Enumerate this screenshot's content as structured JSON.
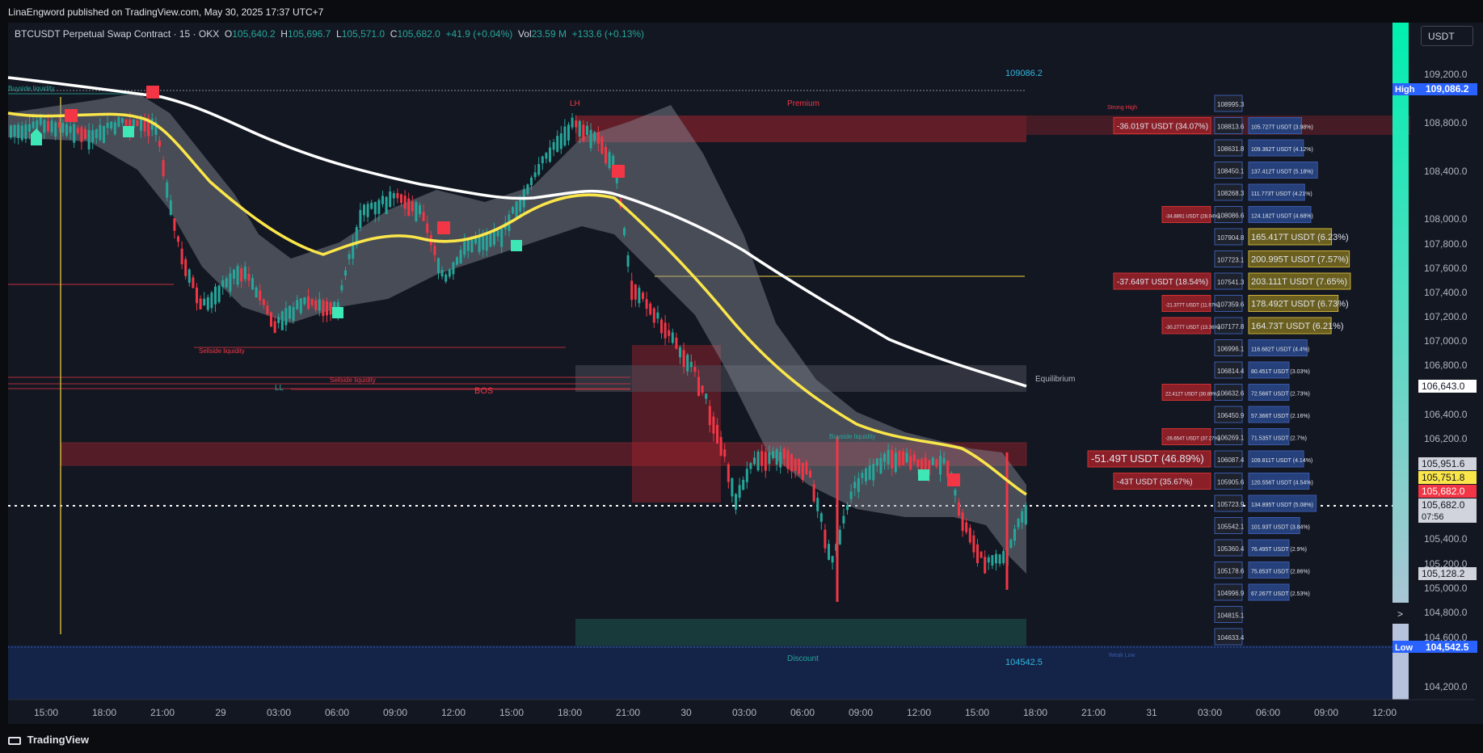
{
  "header": {
    "published": "LinaEngword published on TradingView.com, May 30, 2025 17:37 UTC+7"
  },
  "symbol": {
    "title": "BTCUSDT Perpetual Swap Contract · 15 · OKX",
    "o_label": "O",
    "o": "105,640.2",
    "h_label": "H",
    "h": "105,696.7",
    "l_label": "L",
    "l": "105,571.0",
    "c_label": "C",
    "c": "105,682.0",
    "change": "+41.9 (+0.04%)",
    "vol_label": "Vol",
    "vol": "23.59 M",
    "vol_change": "+133.6 (+0.13%)"
  },
  "currency_button": "USDT",
  "price_axis": {
    "ticks": [
      "109,200.0",
      "108,800.0",
      "108,400.0",
      "108,000.0",
      "107,800.0",
      "107,600.0",
      "107,400.0",
      "107,200.0",
      "107,000.0",
      "106,800.0",
      "106,400.0",
      "106,200.0",
      "105,400.0",
      "105,200.0",
      "105,000.0",
      "104,800.0",
      "104,600.0",
      "104,200.0"
    ],
    "high_label": "High",
    "high_value": "109,086.2",
    "low_label": "Low",
    "low_value": "104,542.5",
    "equilibrium_value": "106,643.0",
    "p1": "105,951.6",
    "p2": "105,751.8",
    "p3": "105,682.0",
    "current": "105,682.0",
    "countdown": "07:56",
    "p4": "105,128.2",
    "more": ">"
  },
  "time_axis": [
    "15:00",
    "18:00",
    "21:00",
    "29",
    "03:00",
    "06:00",
    "09:00",
    "12:00",
    "15:00",
    "18:00",
    "21:00",
    "30",
    "03:00",
    "06:00",
    "09:00",
    "12:00",
    "15:00",
    "18:00",
    "21:00",
    "31",
    "03:00",
    "06:00",
    "09:00",
    "12:00"
  ],
  "annotations": {
    "high_value": "109086.2",
    "low_value": "104542.5",
    "premium": "Premium",
    "discount": "Discount",
    "equilibrium": "Equilibrium",
    "strong_high": "Strong High",
    "weak_low": "Weak Low",
    "lh": "LH",
    "ll": "LL",
    "bos": "BOS",
    "buyside_1": "Buyside liquidity",
    "buyside_2": "Buyside liquidity",
    "sellside_1": "Sellside liquidity",
    "sellside_2": "Sellside liquidity"
  },
  "volume_profile": {
    "rows": [
      {
        "price": "108995.3",
        "left": "",
        "right": ""
      },
      {
        "price": "108813.6",
        "left": "-36.019T USDT (34.07%)",
        "right": "105.727T USDT (3.98%)"
      },
      {
        "price": "108631.8",
        "left": "",
        "right": "109.362T USDT (4.12%)"
      },
      {
        "price": "108450.1",
        "left": "",
        "right": "137.412T USDT (5.18%)"
      },
      {
        "price": "108268.3",
        "left": "",
        "right": "111.773T USDT (4.21%)"
      },
      {
        "price": "108086.6",
        "left": "-34.8891 USDT (28.04%)",
        "right": "124.182T USDT (4.68%)"
      },
      {
        "price": "107904.8",
        "left": "",
        "right": "165.417T USDT (6.23%)"
      },
      {
        "price": "107723.1",
        "left": "",
        "right": "200.995T USDT (7.57%)"
      },
      {
        "price": "107541.3",
        "left": "-37.649T USDT (18.54%)",
        "right": "203.111T USDT (7.65%)"
      },
      {
        "price": "107359.6",
        "left": "-21.377T USDT (11.97%)",
        "right": "178.492T USDT (6.73%)"
      },
      {
        "price": "107177.8",
        "left": "-30.277T USDT (13.36%)",
        "right": "164.73T USDT (6.21%)"
      },
      {
        "price": "106996.1",
        "left": "",
        "right": "116.682T USDT (4.4%)"
      },
      {
        "price": "106814.4",
        "left": "",
        "right": "80.451T USDT (3.03%)"
      },
      {
        "price": "106632.6",
        "left": "22.412T USDT (30.89%)",
        "right": "72.566T USDT (2.73%)"
      },
      {
        "price": "106450.9",
        "left": "",
        "right": "57.366T USDT (2.16%)"
      },
      {
        "price": "106269.1",
        "left": "-26.654T USDT (37.27%)",
        "right": "71.535T USDT (2.7%)"
      },
      {
        "price": "106087.4",
        "left": "-51.49T USDT (46.89%)",
        "right": "109.811T USDT (4.14%)"
      },
      {
        "price": "105905.6",
        "left": "-43T USDT (35.67%)",
        "right": "120.556T USDT (4.54%)"
      },
      {
        "price": "105723.9",
        "left": "",
        "right": "134.895T USDT (5.08%)"
      },
      {
        "price": "105542.1",
        "left": "",
        "right": "101.93T USDT (3.84%)"
      },
      {
        "price": "105360.4",
        "left": "",
        "right": "76.495T USDT (2.9%)"
      },
      {
        "price": "105178.6",
        "left": "",
        "right": "75.853T USDT (2.86%)"
      },
      {
        "price": "104996.9",
        "left": "",
        "right": "67.267T USDT (2.53%)"
      },
      {
        "price": "104815.1",
        "left": "",
        "right": ""
      },
      {
        "price": "104633.4",
        "left": "",
        "right": ""
      }
    ]
  },
  "footer": {
    "brand": "TradingView"
  },
  "colors": {
    "bull": "#26a69a",
    "bear": "#f23645",
    "ema_fast": "#fbe64a",
    "ema_slow": "#ffffff",
    "premium": "#a3242e",
    "discount": "#1b4a44",
    "low_zone": "#152a55"
  }
}
